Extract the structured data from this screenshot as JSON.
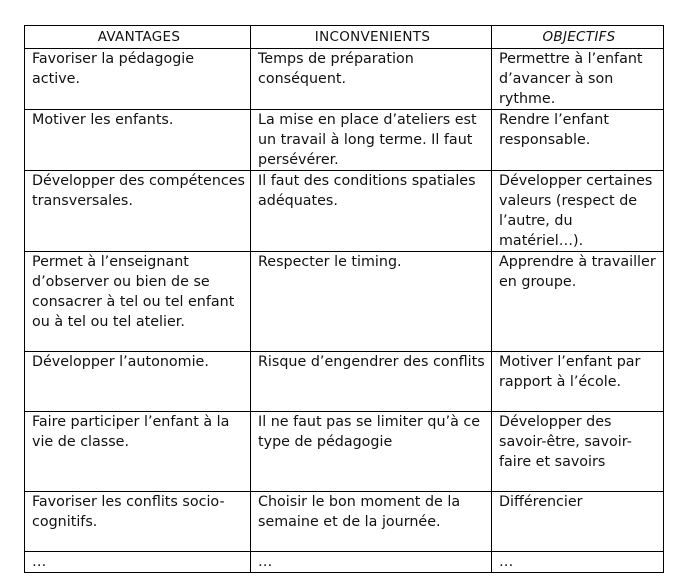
{
  "headers": [
    "AVANTAGES",
    "INCONVENIENTS",
    "OBJECTIFS"
  ],
  "rows": [
    [
      "Favoriser la pédagogie active.",
      "Temps de préparation conséquent.",
      "Permettre à l’enfant d’avancer à son rythme."
    ],
    [
      "Motiver les enfants.",
      "La mise en place d’ateliers est un travail à long terme. Il faut persévérer.",
      "Rendre l’enfant responsable."
    ],
    [
      "Développer des compétences transversales.",
      "Il faut des conditions spatiales adéquates.",
      "Développer certaines valeurs (respect de l’autre, du matériel…)."
    ],
    [
      "Permet à l’enseignant d’observer ou bien de se consacrer à tel ou tel enfant ou à tel ou tel atelier.",
      "Respecter le timing.",
      "Apprendre à travailler en groupe."
    ],
    [
      "Développer l’autonomie.",
      "Risque d’engendrer des conflits",
      "Motiver l’enfant par rapport à l’école."
    ],
    [
      "Faire participer l’enfant à la vie de classe.",
      "Il ne faut pas se limiter qu’à ce type de pédagogie",
      "Développer des savoir-être, savoir-faire et savoirs"
    ],
    [
      "Favoriser les conflits socio-cognitifs.",
      "Choisir le bon moment de la semaine et de la journée.",
      "Différencier"
    ],
    [
      "…",
      "…",
      "…"
    ]
  ]
}
